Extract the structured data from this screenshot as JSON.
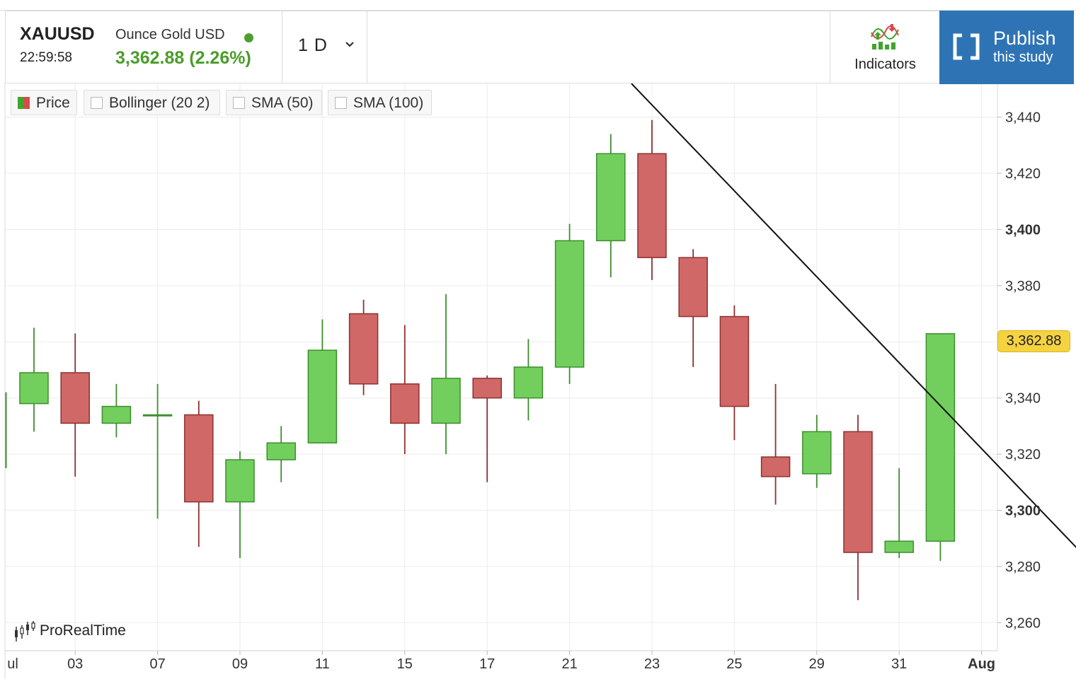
{
  "header": {
    "symbol": "XAUUSD",
    "time": "22:59:58",
    "instrument": "Ounce Gold USD",
    "quote": "3,362.88 (2.26%)",
    "period": "1 D",
    "indicators_label": "Indicators",
    "publish_title": "Publish",
    "publish_subtitle": "this study"
  },
  "legend": [
    {
      "label": "Price"
    },
    {
      "label": "Bollinger (20 2)"
    },
    {
      "label": "SMA (50)"
    },
    {
      "label": "SMA (100)"
    }
  ],
  "watermark": "ProRealTime",
  "last_price_label": "3,362.88",
  "colors": {
    "up_fill": "#72cf5e",
    "up_stroke": "#3c8f2c",
    "down_fill": "#cf6866",
    "down_stroke": "#8f3030",
    "badge": "#f5d340",
    "publish": "#2e74b5",
    "quote": "#4a9d2a"
  },
  "chart_data": {
    "type": "candlestick",
    "ylim": [
      3250,
      3452
    ],
    "grid": true,
    "y_ticks": [
      3260,
      3280,
      3300,
      3320,
      3340,
      3360,
      3380,
      3400,
      3420,
      3440
    ],
    "y_tick_labels": [
      "3,260",
      "3,280",
      "3,300",
      "3,320",
      "3,340",
      "3,360",
      "3,380",
      "3,400",
      "3,420",
      "3,440"
    ],
    "y_bold_labels": [
      "3,300",
      "3,400"
    ],
    "x_labels": [
      "ul",
      "03",
      "07",
      "09",
      "11",
      "15",
      "17",
      "21",
      "23",
      "25",
      "29",
      "31",
      "Aug"
    ],
    "x_label_index": [
      -0.65,
      1,
      3,
      5,
      7,
      9,
      11,
      13,
      15,
      17,
      19,
      21,
      23
    ],
    "candles": [
      {
        "open": 3338,
        "high": 3365,
        "low": 3328,
        "close": 3349
      },
      {
        "open": 3349,
        "high": 3363,
        "low": 3312,
        "close": 3331
      },
      {
        "open": 3331,
        "high": 3345,
        "low": 3326,
        "close": 3337
      },
      {
        "open": 3334,
        "high": 3345,
        "low": 3297,
        "close": 3334
      },
      {
        "open": 3334,
        "high": 3339,
        "low": 3287,
        "close": 3303
      },
      {
        "open": 3303,
        "high": 3321,
        "low": 3283,
        "close": 3318
      },
      {
        "open": 3318,
        "high": 3330,
        "low": 3310,
        "close": 3324
      },
      {
        "open": 3324,
        "high": 3368,
        "low": 3324,
        "close": 3357
      },
      {
        "open": 3370,
        "high": 3375,
        "low": 3341,
        "close": 3345
      },
      {
        "open": 3345,
        "high": 3366,
        "low": 3320,
        "close": 3331
      },
      {
        "open": 3331,
        "high": 3377,
        "low": 3320,
        "close": 3347
      },
      {
        "open": 3347,
        "high": 3348,
        "low": 3310,
        "close": 3340
      },
      {
        "open": 3340,
        "high": 3361,
        "low": 3332,
        "close": 3351
      },
      {
        "open": 3351,
        "high": 3402,
        "low": 3345,
        "close": 3396
      },
      {
        "open": 3396,
        "high": 3434,
        "low": 3383,
        "close": 3427
      },
      {
        "open": 3427,
        "high": 3439,
        "low": 3382,
        "close": 3390
      },
      {
        "open": 3390,
        "high": 3393,
        "low": 3351,
        "close": 3369
      },
      {
        "open": 3369,
        "high": 3373,
        "low": 3325,
        "close": 3337
      },
      {
        "open": 3319,
        "high": 3345,
        "low": 3302,
        "close": 3312
      },
      {
        "open": 3313,
        "high": 3334,
        "low": 3308,
        "close": 3328
      },
      {
        "open": 3328,
        "high": 3334,
        "low": 3268,
        "close": 3285
      },
      {
        "open": 3285,
        "high": 3315,
        "low": 3283,
        "close": 3289
      },
      {
        "open": 3289,
        "high": 3363,
        "low": 3282,
        "close": 3362.88
      }
    ],
    "trendline": {
      "from": {
        "index": 14.5,
        "value": 3452
      },
      "to": {
        "index": 26.2,
        "value": 3273
      }
    }
  }
}
